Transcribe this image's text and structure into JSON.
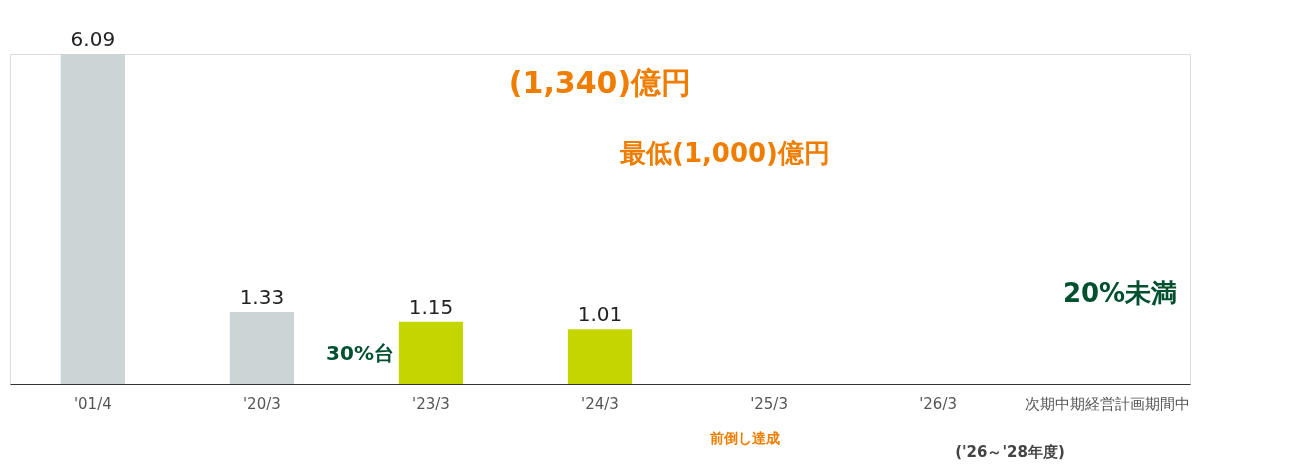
{
  "chart_data": {
    "type": "bar",
    "categories": [
      "'01/4",
      "'20/3",
      "'23/3",
      "'24/3",
      "'25/3",
      "'26/3",
      "次期中期経営計画期間中"
    ],
    "values": [
      6.09,
      1.33,
      1.15,
      1.01,
      null,
      null,
      null
    ],
    "colors": [
      "#cbd5d5",
      "#cbd5d5",
      "#c5d500",
      "#c5d500",
      "#e6eda0",
      "#e6eda0",
      "#d4df40"
    ],
    "data_labels": true,
    "legend": false,
    "annotations": [
      "(1,340)億円",
      "最低(1,000)億円",
      "30%台",
      "20%未満",
      "前倒し達成",
      "('26～'28年度)"
    ]
  }
}
